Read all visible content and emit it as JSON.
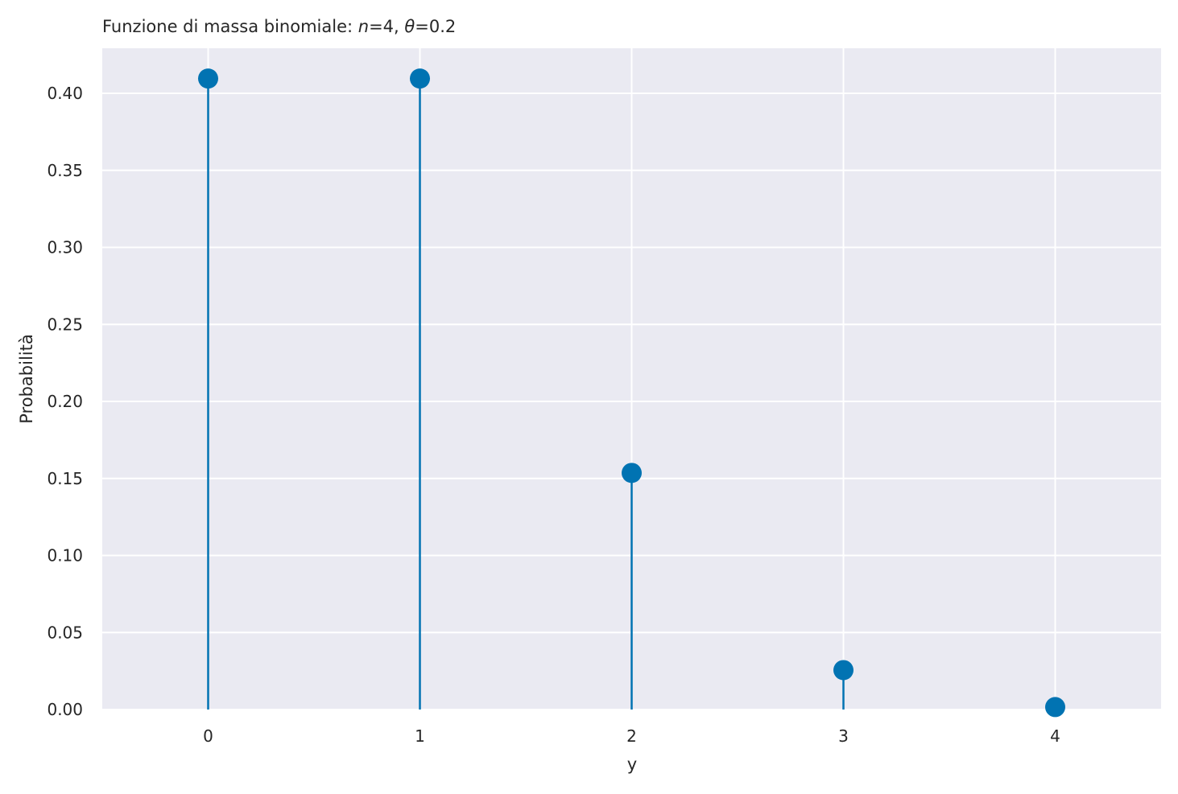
{
  "chart_data": {
    "type": "stem",
    "title": {
      "prefix": "Funzione di massa binomiale: ",
      "n_symbol": "n",
      "n_value": "=4, ",
      "theta_symbol": "θ",
      "theta_value": "=0.2"
    },
    "xlabel": "y",
    "ylabel": "Probabilità",
    "x": [
      0,
      1,
      2,
      3,
      4
    ],
    "values": [
      0.4096,
      0.4096,
      0.1536,
      0.0256,
      0.0016
    ],
    "xlim": [
      -0.5,
      4.5
    ],
    "ylim": [
      0,
      0.43
    ],
    "x_ticks": [
      "0",
      "1",
      "2",
      "3",
      "4"
    ],
    "y_ticks": [
      "0.00",
      "0.05",
      "0.10",
      "0.15",
      "0.20",
      "0.25",
      "0.30",
      "0.35",
      "0.40"
    ],
    "grid": true,
    "colors": {
      "stem": "#0173b2",
      "marker": "#0173b2",
      "plot_background": "#eaeaf2",
      "grid": "#ffffff"
    }
  }
}
